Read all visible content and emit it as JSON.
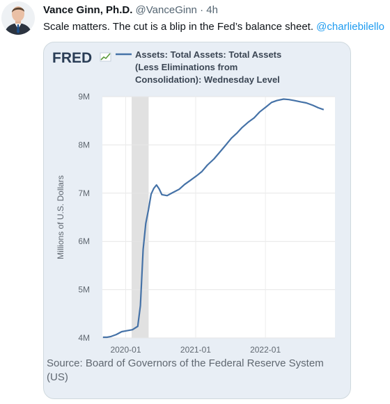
{
  "tweet": {
    "author_name": "Vance Ginn, Ph.D.",
    "handle": "@VanceGinn",
    "separator": "·",
    "time": "4h",
    "text": "Scale matters. The cut is a blip in the Fed’s balance sheet. ",
    "mention": "@charliebilello"
  },
  "chart": {
    "logo": "FRED",
    "legend_lines": [
      "Assets: Total Assets: Total Assets",
      "(Less Eliminations from",
      "Consolidation): Wednesday Level"
    ],
    "source": "Source: Board of Governors of the Federal Reserve System (US)",
    "colors": {
      "line": "#4572a7",
      "recession": "#e1e1e1",
      "plot_bg": "#ffffff",
      "card_bg": "#e8eef5"
    }
  },
  "chart_data": {
    "type": "line",
    "ylabel": "Millions of U.S. Dollars",
    "ylim": [
      4000000,
      9000000
    ],
    "y_ticks": [
      {
        "value": 4000000,
        "label": "4M"
      },
      {
        "value": 5000000,
        "label": "5M"
      },
      {
        "value": 6000000,
        "label": "6M"
      },
      {
        "value": 7000000,
        "label": "7M"
      },
      {
        "value": 8000000,
        "label": "8M"
      },
      {
        "value": 9000000,
        "label": "9M"
      }
    ],
    "xlim": [
      "2019-09-01",
      "2022-12-31"
    ],
    "x_ticks": [
      {
        "value": "2020-01-01",
        "label": "2020-01"
      },
      {
        "value": "2021-01-01",
        "label": "2021-01"
      },
      {
        "value": "2022-01-01",
        "label": "2022-01"
      }
    ],
    "grid": true,
    "shaded_periods": [
      {
        "start": "2020-02-01",
        "end": "2020-04-30"
      }
    ],
    "series": [
      {
        "points": [
          [
            "2019-09-04",
            3850000
          ],
          [
            "2019-09-25",
            3970000
          ],
          [
            "2019-10-16",
            4030000
          ],
          [
            "2019-11-13",
            4070000
          ],
          [
            "2019-12-11",
            4130000
          ],
          [
            "2020-01-08",
            4150000
          ],
          [
            "2020-02-05",
            4170000
          ],
          [
            "2020-03-04",
            4240000
          ],
          [
            "2020-03-18",
            4670000
          ],
          [
            "2020-04-01",
            5830000
          ],
          [
            "2020-04-15",
            6370000
          ],
          [
            "2020-04-29",
            6650000
          ],
          [
            "2020-05-13",
            6980000
          ],
          [
            "2020-05-27",
            7100000
          ],
          [
            "2020-06-10",
            7170000
          ],
          [
            "2020-06-24",
            7090000
          ],
          [
            "2020-07-08",
            6970000
          ],
          [
            "2020-08-05",
            6950000
          ],
          [
            "2020-09-02",
            7010000
          ],
          [
            "2020-10-07",
            7080000
          ],
          [
            "2020-11-04",
            7180000
          ],
          [
            "2020-12-02",
            7260000
          ],
          [
            "2021-01-06",
            7360000
          ],
          [
            "2021-02-03",
            7450000
          ],
          [
            "2021-03-03",
            7580000
          ],
          [
            "2021-04-07",
            7710000
          ],
          [
            "2021-05-05",
            7840000
          ],
          [
            "2021-06-02",
            7970000
          ],
          [
            "2021-07-07",
            8140000
          ],
          [
            "2021-08-04",
            8240000
          ],
          [
            "2021-09-01",
            8360000
          ],
          [
            "2021-10-06",
            8480000
          ],
          [
            "2021-11-03",
            8560000
          ],
          [
            "2021-12-01",
            8680000
          ],
          [
            "2022-01-05",
            8790000
          ],
          [
            "2022-02-02",
            8880000
          ],
          [
            "2022-03-02",
            8920000
          ],
          [
            "2022-04-06",
            8950000
          ],
          [
            "2022-05-04",
            8940000
          ],
          [
            "2022-06-01",
            8920000
          ],
          [
            "2022-07-06",
            8890000
          ],
          [
            "2022-08-03",
            8870000
          ],
          [
            "2022-09-07",
            8820000
          ],
          [
            "2022-10-05",
            8770000
          ],
          [
            "2022-11-02",
            8730000
          ]
        ]
      }
    ]
  }
}
